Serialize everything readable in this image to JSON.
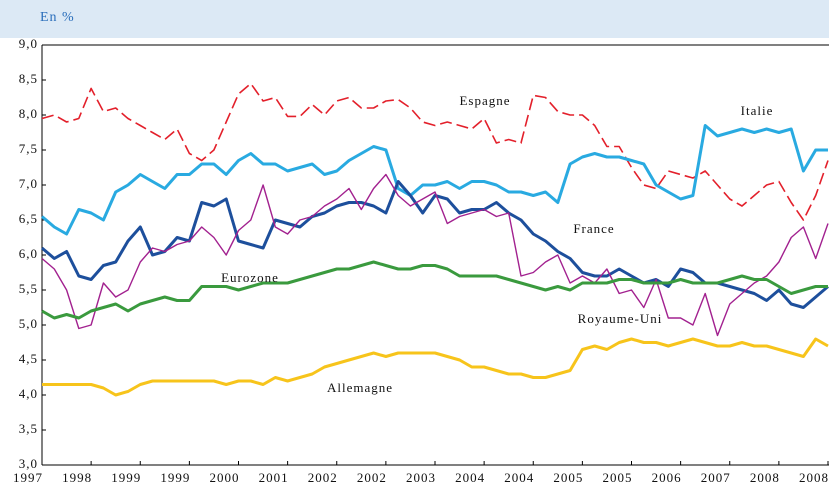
{
  "chart_data": {
    "type": "line",
    "subtitle": "En %",
    "categories": [
      "1997",
      null,
      null,
      null,
      "1998",
      null,
      null,
      null,
      "1999",
      null,
      null,
      null,
      "1999",
      null,
      null,
      null,
      "2000",
      null,
      null,
      null,
      "2001",
      null,
      null,
      null,
      "2002",
      null,
      null,
      null,
      "2002",
      null,
      null,
      null,
      "2003",
      null,
      null,
      null,
      "2004",
      null,
      null,
      null,
      "2004",
      null,
      null,
      null,
      "2005",
      null,
      null,
      null,
      "2005",
      null,
      null,
      null,
      "2006",
      null,
      null,
      null,
      "2007",
      null,
      null,
      null,
      "2008",
      null,
      null,
      null,
      "2008"
    ],
    "ylim": [
      3,
      9
    ],
    "yticks": [
      {
        "value": 3,
        "label": "3,0"
      },
      {
        "value": 3.5,
        "label": "3,5"
      },
      {
        "value": 4,
        "label": "4,0"
      },
      {
        "value": 4.5,
        "label": "4,5"
      },
      {
        "value": 5,
        "label": "5,0"
      },
      {
        "value": 5.5,
        "label": "5,5"
      },
      {
        "value": 6,
        "label": "6,0"
      },
      {
        "value": 6.5,
        "label": "6,5"
      },
      {
        "value": 7,
        "label": "7,0"
      },
      {
        "value": 7.5,
        "label": "7,5"
      },
      {
        "value": 8,
        "label": "8,0"
      },
      {
        "value": 8.5,
        "label": "8,5"
      },
      {
        "value": 9,
        "label": "9,0"
      }
    ],
    "series": [
      {
        "name": "Espagne",
        "color": "#e3202b",
        "dashed": true,
        "values": [
          7.95,
          8.0,
          7.9,
          7.95,
          8.38,
          8.05,
          8.1,
          7.95,
          7.85,
          7.75,
          7.65,
          7.8,
          7.45,
          7.35,
          7.5,
          7.9,
          8.3,
          8.45,
          8.2,
          8.25,
          7.98,
          7.98,
          8.15,
          8.0,
          8.2,
          8.25,
          8.1,
          8.1,
          8.2,
          8.22,
          8.1,
          7.9,
          7.85,
          7.9,
          7.85,
          7.8,
          7.95,
          7.6,
          7.65,
          7.6,
          8.28,
          8.25,
          8.05,
          8.0,
          8.0,
          7.85,
          7.55,
          7.55,
          7.25,
          7.0,
          6.95,
          7.2,
          7.15,
          7.1,
          7.2,
          7.0,
          6.8,
          6.7,
          6.85,
          7.0,
          7.05,
          6.75,
          6.5,
          6.85,
          7.35
        ]
      },
      {
        "name": "Italie",
        "color": "#29aae1",
        "values": [
          6.55,
          6.4,
          6.3,
          6.65,
          6.6,
          6.5,
          6.9,
          7.0,
          7.15,
          7.05,
          6.95,
          7.15,
          7.15,
          7.3,
          7.3,
          7.15,
          7.35,
          7.45,
          7.3,
          7.3,
          7.2,
          7.25,
          7.3,
          7.15,
          7.2,
          7.35,
          7.45,
          7.55,
          7.5,
          6.95,
          6.85,
          7.0,
          7.0,
          7.05,
          6.95,
          7.05,
          7.05,
          7.0,
          6.9,
          6.9,
          6.85,
          6.9,
          6.75,
          7.3,
          7.4,
          7.45,
          7.4,
          7.4,
          7.35,
          7.3,
          7.0,
          6.9,
          6.8,
          6.85,
          7.85,
          7.7,
          7.75,
          7.8,
          7.75,
          7.8,
          7.75,
          7.8,
          7.2,
          7.5,
          7.5
        ]
      },
      {
        "name": "France",
        "color": "#1d4f9c",
        "values": [
          6.1,
          5.95,
          6.05,
          5.7,
          5.65,
          5.85,
          5.9,
          6.2,
          6.4,
          6.0,
          6.05,
          6.25,
          6.2,
          6.75,
          6.7,
          6.8,
          6.2,
          6.15,
          6.1,
          6.5,
          6.45,
          6.4,
          6.55,
          6.6,
          6.7,
          6.75,
          6.75,
          6.7,
          6.6,
          7.05,
          6.85,
          6.6,
          6.85,
          6.8,
          6.6,
          6.65,
          6.65,
          6.75,
          6.6,
          6.5,
          6.3,
          6.2,
          6.05,
          5.95,
          5.75,
          5.7,
          5.7,
          5.8,
          5.7,
          5.6,
          5.65,
          5.55,
          5.8,
          5.75,
          5.6,
          5.6,
          5.55,
          5.5,
          5.45,
          5.35,
          5.5,
          5.3,
          5.25,
          5.4,
          5.55
        ]
      },
      {
        "name": "Royaume-Uni",
        "color": "#a2218f",
        "values": [
          5.95,
          5.8,
          5.5,
          4.95,
          5.0,
          5.6,
          5.4,
          5.5,
          5.9,
          6.1,
          6.05,
          6.15,
          6.2,
          6.4,
          6.25,
          6.0,
          6.35,
          6.5,
          7.0,
          6.4,
          6.3,
          6.5,
          6.55,
          6.7,
          6.8,
          6.95,
          6.65,
          6.95,
          7.15,
          6.85,
          6.7,
          6.8,
          6.9,
          6.45,
          6.55,
          6.6,
          6.65,
          6.55,
          6.6,
          5.7,
          5.75,
          5.9,
          6.0,
          5.6,
          5.7,
          5.6,
          5.8,
          5.45,
          5.5,
          5.25,
          5.65,
          5.1,
          5.1,
          5.0,
          5.45,
          4.85,
          5.3,
          5.45,
          5.6,
          5.7,
          5.9,
          6.25,
          6.4,
          5.95,
          6.45
        ]
      },
      {
        "name": "Eurozone",
        "color": "#3a9a3e",
        "values": [
          5.2,
          5.1,
          5.15,
          5.1,
          5.2,
          5.25,
          5.3,
          5.2,
          5.3,
          5.35,
          5.4,
          5.35,
          5.35,
          5.55,
          5.55,
          5.55,
          5.5,
          5.55,
          5.6,
          5.6,
          5.6,
          5.65,
          5.7,
          5.75,
          5.8,
          5.8,
          5.85,
          5.9,
          5.85,
          5.8,
          5.8,
          5.85,
          5.85,
          5.8,
          5.7,
          5.7,
          5.7,
          5.7,
          5.65,
          5.6,
          5.55,
          5.5,
          5.55,
          5.5,
          5.6,
          5.6,
          5.6,
          5.65,
          5.65,
          5.6,
          5.6,
          5.6,
          5.65,
          5.6,
          5.6,
          5.6,
          5.65,
          5.7,
          5.65,
          5.65,
          5.55,
          5.45,
          5.5,
          5.55,
          5.55
        ]
      },
      {
        "name": "Allemagne",
        "color": "#f7c41b",
        "values": [
          4.15,
          4.15,
          4.15,
          4.15,
          4.15,
          4.1,
          4.0,
          4.05,
          4.15,
          4.2,
          4.2,
          4.2,
          4.2,
          4.2,
          4.2,
          4.15,
          4.2,
          4.2,
          4.15,
          4.25,
          4.2,
          4.25,
          4.3,
          4.4,
          4.45,
          4.5,
          4.55,
          4.6,
          4.55,
          4.6,
          4.6,
          4.6,
          4.6,
          4.55,
          4.5,
          4.4,
          4.4,
          4.35,
          4.3,
          4.3,
          4.25,
          4.25,
          4.3,
          4.35,
          4.65,
          4.7,
          4.65,
          4.75,
          4.8,
          4.75,
          4.75,
          4.7,
          4.75,
          4.8,
          4.75,
          4.7,
          4.7,
          4.75,
          4.7,
          4.7,
          4.65,
          4.6,
          4.55,
          4.8,
          4.7
        ]
      }
    ]
  }
}
